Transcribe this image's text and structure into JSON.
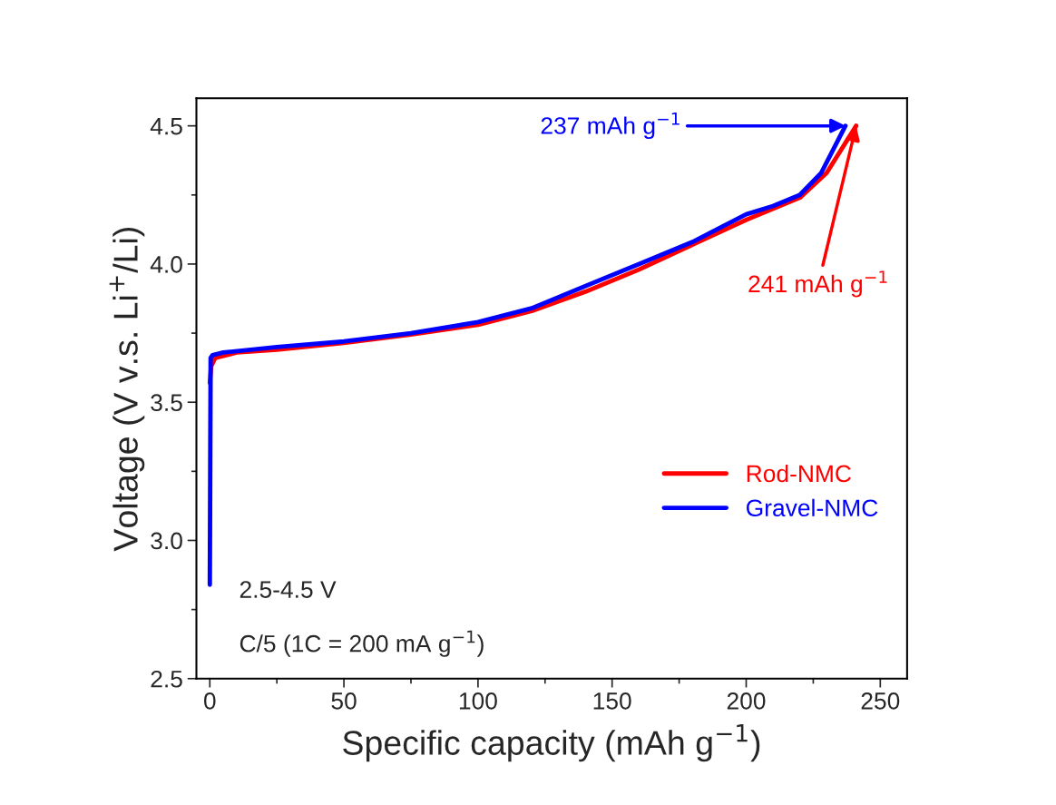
{
  "chart_data": {
    "type": "line",
    "xlabel": "Specific capacity (mAh g$^{−1}$)",
    "ylabel": "Voltage (V v.s. Li$^{+}$/Li)",
    "xlim": [
      -5,
      260
    ],
    "ylim": [
      2.5,
      4.6
    ],
    "xticks": [
      0,
      50,
      100,
      150,
      200,
      250
    ],
    "yticks": [
      2.5,
      {
        "value": 3,
        "label": "3.0"
      },
      3.5,
      {
        "value": 4,
        "label": "4.0"
      },
      4.5
    ],
    "grid": false,
    "legend": "right",
    "line_style": "solid",
    "marker": "none",
    "series": [
      {
        "name": "Rod-NMC",
        "color": "#ff0000",
        "x": [
          0,
          0.5,
          2,
          10,
          25,
          50,
          75,
          100,
          120,
          140,
          160,
          180,
          200,
          210,
          220,
          230,
          241
        ],
        "values": [
          3.57,
          3.63,
          3.66,
          3.68,
          3.69,
          3.715,
          3.745,
          3.78,
          3.83,
          3.9,
          3.98,
          4.07,
          4.16,
          4.2,
          4.24,
          4.33,
          4.5
        ]
      },
      {
        "name": "Gravel-NMC",
        "color": "#0000ff",
        "x": [
          0,
          0.3,
          1,
          5,
          25,
          50,
          75,
          100,
          120,
          140,
          160,
          180,
          200,
          210,
          220,
          228,
          237
        ],
        "values": [
          2.84,
          3.66,
          3.67,
          3.68,
          3.7,
          3.72,
          3.75,
          3.79,
          3.84,
          3.92,
          4.0,
          4.08,
          4.18,
          4.21,
          4.25,
          4.33,
          4.5
        ]
      }
    ],
    "annotations": [
      {
        "text": "237 mAh g$^{−1}$",
        "x": 237,
        "y": 4.5
      },
      {
        "text": "241 mAh g$^{−1}$",
        "x": 241,
        "y": 4.5
      },
      "2.5-4.5 V",
      "C/5 (1C = 200 mA g$^{−1}$)"
    ]
  }
}
